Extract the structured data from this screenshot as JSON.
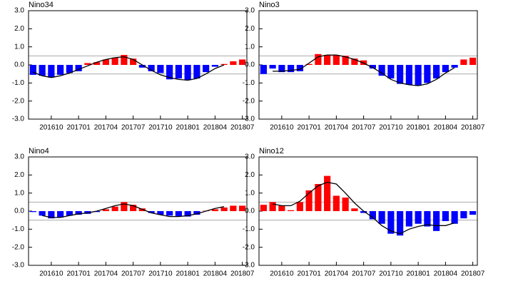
{
  "chart_data": [
    {
      "type": "bar",
      "title": "Nino34",
      "categories": [
        null,
        null,
        "201610",
        null,
        null,
        "201701",
        null,
        null,
        "201704",
        null,
        null,
        "201707",
        null,
        null,
        "201710",
        null,
        null,
        "201801",
        null,
        null,
        "201804",
        null,
        null,
        "201807"
      ],
      "values": [
        -0.55,
        -0.6,
        -0.7,
        -0.55,
        -0.45,
        -0.35,
        0.1,
        0.15,
        0.3,
        0.4,
        0.55,
        0.35,
        -0.15,
        -0.35,
        -0.45,
        -0.8,
        -0.75,
        -0.85,
        -0.75,
        -0.4,
        -0.1,
        0.05,
        0.2,
        0.3
      ],
      "line": [
        -0.4,
        -0.6,
        -0.7,
        -0.6,
        -0.45,
        -0.25,
        -0.05,
        0.15,
        0.3,
        0.4,
        0.45,
        0.3,
        0.0,
        -0.3,
        -0.55,
        -0.7,
        -0.8,
        -0.85,
        -0.75,
        -0.5,
        -0.2,
        0.0,
        null,
        null
      ],
      "positive_color": "#ff0000",
      "negative_color": "#0000ff",
      "line_color": "#000000",
      "reference_lines": [
        0.5,
        -0.5
      ],
      "ylim": [
        -3,
        3
      ],
      "yticks": [
        {
          "value": -3,
          "label": "-3.0"
        },
        {
          "value": -2,
          "label": "-2.0"
        },
        {
          "value": -1,
          "label": "-1.0"
        },
        {
          "value": 0,
          "label": "0.0"
        },
        {
          "value": 1,
          "label": "1.0"
        },
        {
          "value": 2,
          "label": "2.0"
        },
        {
          "value": 3,
          "label": "3.0"
        }
      ]
    },
    {
      "type": "bar",
      "title": "Nino3",
      "categories": [
        null,
        null,
        "201610",
        null,
        null,
        "201701",
        null,
        null,
        "201704",
        null,
        null,
        "201707",
        null,
        null,
        "201710",
        null,
        null,
        "201801",
        null,
        null,
        "201804",
        null,
        null,
        "201807"
      ],
      "values": [
        -0.5,
        -0.2,
        -0.4,
        -0.4,
        -0.35,
        0.05,
        0.6,
        0.55,
        0.55,
        0.5,
        0.35,
        0.25,
        -0.2,
        -0.6,
        -0.75,
        -1.05,
        -1.1,
        -1.15,
        -1.0,
        -0.75,
        -0.4,
        -0.15,
        0.3,
        0.4
      ],
      "line": [
        null,
        -0.35,
        -0.35,
        -0.3,
        -0.25,
        0.1,
        0.45,
        0.55,
        0.55,
        0.45,
        0.3,
        0.1,
        -0.15,
        -0.45,
        -0.8,
        -1.0,
        -1.1,
        -1.15,
        -1.05,
        -0.8,
        -0.45,
        -0.15,
        null,
        null
      ],
      "positive_color": "#ff0000",
      "negative_color": "#0000ff",
      "line_color": "#000000",
      "reference_lines": [
        0.5,
        -0.5
      ],
      "ylim": [
        -3,
        3
      ],
      "yticks": [
        {
          "value": -3,
          "label": "-3.0"
        },
        {
          "value": -2,
          "label": "-2.0"
        },
        {
          "value": -1,
          "label": "-1.0"
        },
        {
          "value": 0,
          "label": "0.0"
        },
        {
          "value": 1,
          "label": "1.0"
        },
        {
          "value": 2,
          "label": "2.0"
        },
        {
          "value": 3,
          "label": "3.0"
        }
      ]
    },
    {
      "type": "bar",
      "title": "Nino4",
      "categories": [
        null,
        null,
        "201610",
        null,
        null,
        "201701",
        null,
        null,
        "201704",
        null,
        null,
        "201707",
        null,
        null,
        "201710",
        null,
        null,
        "201801",
        null,
        null,
        "201804",
        null,
        null,
        "201807"
      ],
      "values": [
        -0.05,
        -0.25,
        -0.4,
        -0.35,
        -0.25,
        -0.2,
        -0.15,
        -0.05,
        0.1,
        0.25,
        0.5,
        0.35,
        0.15,
        -0.1,
        -0.2,
        -0.25,
        -0.3,
        -0.3,
        -0.2,
        0.02,
        0.1,
        0.2,
        0.3,
        0.3
      ],
      "line": [
        null,
        -0.25,
        -0.35,
        -0.35,
        -0.25,
        -0.15,
        -0.1,
        0.0,
        0.15,
        0.3,
        0.4,
        0.3,
        0.1,
        -0.1,
        -0.2,
        -0.3,
        -0.3,
        -0.25,
        -0.15,
        0.0,
        0.15,
        0.25,
        null,
        null
      ],
      "positive_color": "#ff0000",
      "negative_color": "#0000ff",
      "line_color": "#000000",
      "reference_lines": [
        0.5,
        -0.5
      ],
      "ylim": [
        -3,
        3
      ],
      "yticks": [
        {
          "value": -3,
          "label": "-3.0"
        },
        {
          "value": -2,
          "label": "-2.0"
        },
        {
          "value": -1,
          "label": "-1.0"
        },
        {
          "value": 0,
          "label": "0.0"
        },
        {
          "value": 1,
          "label": "1.0"
        },
        {
          "value": 2,
          "label": "2.0"
        },
        {
          "value": 3,
          "label": "3.0"
        }
      ]
    },
    {
      "type": "bar",
      "title": "Nino12",
      "categories": [
        null,
        null,
        "201610",
        null,
        null,
        "201701",
        null,
        null,
        "201704",
        null,
        null,
        "201707",
        null,
        null,
        "201710",
        null,
        null,
        "201801",
        null,
        null,
        "201804",
        null,
        null,
        "201807"
      ],
      "values": [
        0.35,
        0.5,
        0.3,
        0.05,
        0.5,
        1.15,
        1.5,
        1.95,
        0.85,
        0.75,
        0.15,
        -0.1,
        -0.45,
        -0.7,
        -1.25,
        -1.35,
        -0.85,
        -0.7,
        -0.85,
        -1.1,
        -0.55,
        -0.7,
        -0.4,
        -0.2
      ],
      "line": [
        null,
        0.4,
        0.3,
        0.3,
        0.55,
        1.0,
        1.4,
        1.6,
        1.5,
        1.0,
        0.45,
        0.0,
        -0.35,
        -0.8,
        -1.1,
        -1.25,
        -1.0,
        -0.85,
        -0.75,
        -0.8,
        -0.8,
        -0.65,
        null,
        null
      ],
      "positive_color": "#ff0000",
      "negative_color": "#0000ff",
      "line_color": "#000000",
      "reference_lines": [
        0.5,
        -0.5
      ],
      "ylim": [
        -3,
        3
      ],
      "yticks": [
        {
          "value": -3,
          "label": "-3.0"
        },
        {
          "value": -2,
          "label": "-2.0"
        },
        {
          "value": -1,
          "label": "-1.0"
        },
        {
          "value": 0,
          "label": "0.0"
        },
        {
          "value": 1,
          "label": "1.0"
        },
        {
          "value": 2,
          "label": "2.0"
        },
        {
          "value": 3,
          "label": "3.0"
        }
      ]
    }
  ]
}
